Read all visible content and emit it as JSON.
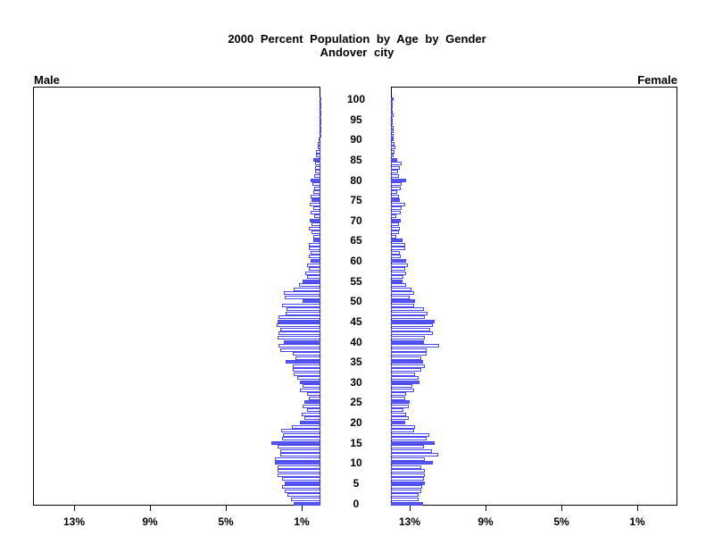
{
  "title": "2000 Percent Population by Age by Gender",
  "subtitle": "Andover city",
  "panel_labels": {
    "left": "Male",
    "right": "Female"
  },
  "colors": {
    "bar_outline": "#4a4aec",
    "bar_fill_solid": "#5656f2",
    "bar_fill_plain": "#ffffff",
    "frame": "#000000",
    "text": "#000000"
  },
  "age_axis": {
    "min": 0,
    "max": 100,
    "label_interval": 5,
    "labels": [
      "0",
      "5",
      "10",
      "15",
      "20",
      "25",
      "30",
      "35",
      "40",
      "45",
      "50",
      "55",
      "60",
      "65",
      "70",
      "75",
      "80",
      "85",
      "90",
      "95",
      "100"
    ]
  },
  "x_axis": {
    "male_tick_labels": [
      "13%",
      "9%",
      "5%",
      "1%"
    ],
    "female_tick_labels": [
      "1%",
      "5%",
      "9%",
      "13%"
    ],
    "tick_values_percent": [
      13,
      9,
      5,
      1
    ],
    "max_percent": 15.2
  },
  "chart_data": {
    "type": "bar",
    "subtype": "population-pyramid",
    "title": "2000 Percent Population by Age by Gender",
    "subtitle": "Andover city",
    "xlabel_left": "Male",
    "xlabel_right": "Female",
    "unit": "percent of total population",
    "age_min": 0,
    "age_max": 100,
    "highlight_filled_every": 5,
    "xlim_percent": [
      0,
      15.2
    ],
    "grid": false,
    "series": [
      {
        "name": "Male",
        "direction": "left",
        "values_by_age": [
          1.42,
          1.57,
          1.73,
          1.89,
          2.04,
          1.89,
          2.04,
          2.28,
          2.28,
          2.28,
          2.39,
          2.39,
          2.12,
          2.12,
          2.28,
          2.6,
          2.01,
          1.97,
          2.08,
          1.49,
          1.1,
          0.86,
          0.97,
          0.71,
          0.94,
          0.86,
          0.63,
          0.71,
          1.07,
          0.94,
          1.1,
          1.23,
          1.42,
          1.45,
          1.45,
          1.86,
          1.34,
          1.45,
          2.12,
          2.2,
          1.92,
          2.28,
          2.2,
          2.12,
          2.33,
          2.25,
          2.2,
          1.86,
          1.78,
          2.04,
          0.94,
          1.89,
          1.93,
          1.42,
          1.13,
          0.94,
          0.71,
          0.79,
          0.6,
          0.71,
          0.5,
          0.6,
          0.5,
          0.63,
          0.6,
          0.39,
          0.39,
          0.47,
          0.6,
          0.47,
          0.55,
          0.31,
          0.5,
          0.39,
          0.55,
          0.47,
          0.5,
          0.39,
          0.35,
          0.42,
          0.5,
          0.35,
          0.3,
          0.26,
          0.3,
          0.39,
          0.24,
          0.24,
          0.14,
          0.12,
          0.08,
          0.06,
          0.05,
          0.06,
          0.05,
          0.06,
          0.03,
          0.03,
          0.02,
          0.02,
          0.03
        ]
      },
      {
        "name": "Female",
        "direction": "right",
        "values_by_age": [
          1.68,
          1.45,
          1.45,
          1.6,
          1.64,
          1.79,
          1.73,
          1.79,
          1.79,
          1.6,
          2.2,
          1.79,
          2.52,
          2.15,
          1.73,
          2.31,
          1.89,
          2.04,
          1.21,
          1.29,
          0.74,
          0.94,
          0.79,
          0.66,
          0.94,
          0.97,
          0.74,
          0.82,
          1.21,
          1.13,
          1.52,
          1.45,
          1.29,
          1.6,
          1.79,
          1.68,
          1.6,
          1.89,
          1.89,
          2.55,
          1.76,
          1.79,
          2.2,
          2.08,
          2.2,
          2.31,
          1.79,
          1.92,
          1.73,
          1.21,
          1.29,
          1.01,
          1.21,
          1.1,
          0.79,
          0.63,
          0.66,
          0.82,
          0.74,
          0.9,
          0.79,
          0.53,
          0.47,
          0.74,
          0.74,
          0.63,
          0.27,
          0.42,
          0.47,
          0.42,
          0.5,
          0.27,
          0.53,
          0.58,
          0.74,
          0.47,
          0.42,
          0.35,
          0.5,
          0.55,
          0.8,
          0.44,
          0.4,
          0.45,
          0.55,
          0.35,
          0.16,
          0.2,
          0.24,
          0.2,
          0.15,
          0.12,
          0.15,
          0.12,
          0.1,
          0.1,
          0.13,
          0.08,
          0.06,
          0.05,
          0.12
        ]
      }
    ]
  }
}
